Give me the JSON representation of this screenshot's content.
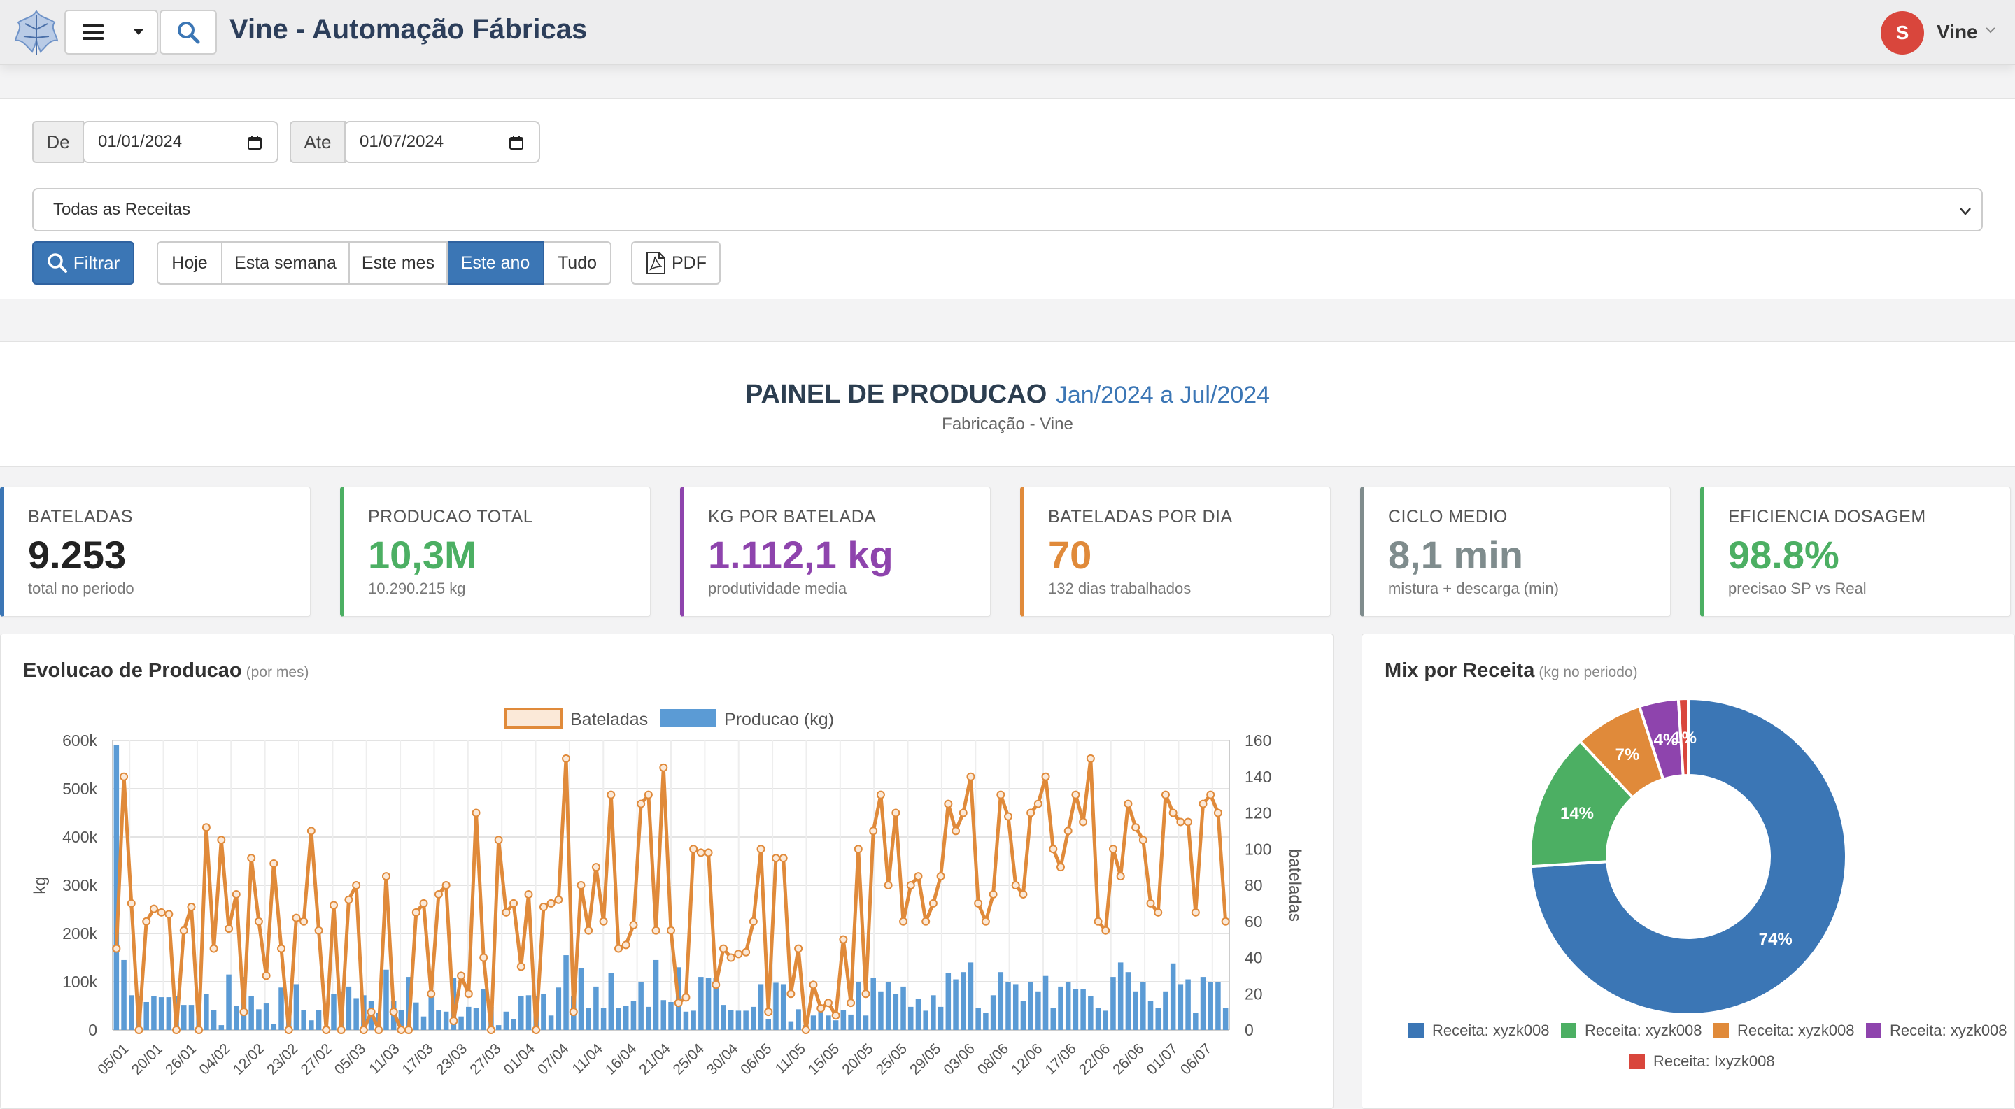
{
  "header": {
    "title": "Vine - Automação Fábricas",
    "user_initial": "S",
    "user_name": "Vine"
  },
  "filters": {
    "from_label": "De",
    "from_value": "01/01/2024",
    "to_label": "Ate",
    "to_value": "01/07/2024",
    "recipe_select": "Todas as Receitas",
    "filter_button": "Filtrar",
    "periods": [
      "Hoje",
      "Esta semana",
      "Este mes",
      "Este ano",
      "Tudo"
    ],
    "active_period": "Este ano",
    "pdf_button": "PDF"
  },
  "dashboard": {
    "title": "PAINEL DE PRODUCAO",
    "period": "Jan/2024 a Jul/2024",
    "subtitle": "Fabricação - Vine"
  },
  "kpis": [
    {
      "label": "BATELADAS",
      "value": "9.253",
      "sub": "total no periodo",
      "color": "#3b76b5",
      "value_color": "#222222"
    },
    {
      "label": "PRODUCAO TOTAL",
      "value": "10,3M",
      "sub": "10.290.215 kg",
      "color": "#4caf63",
      "value_color": "#4caf63"
    },
    {
      "label": "KG POR BATELADA",
      "value": "1.112,1 kg",
      "sub": "produtividade media",
      "color": "#8e44ad",
      "value_color": "#8e44ad"
    },
    {
      "label": "BATELADAS POR DIA",
      "value": "70",
      "sub": "132 dias trabalhados",
      "color": "#e08a3a",
      "value_color": "#e08a3a"
    },
    {
      "label": "CICLO MEDIO",
      "value": "8,1 min",
      "sub": "mistura + descarga (min)",
      "color": "#7f8c8d",
      "value_color": "#7f8c8d"
    },
    {
      "label": "EFICIENCIA DOSAGEM",
      "value": "98.8%",
      "sub": "precisao SP vs Real",
      "color": "#4caf63",
      "value_color": "#4caf63"
    }
  ],
  "production_panel": {
    "title": "Evolucao de Producao",
    "subtitle": "(por mes)"
  },
  "mix_panel": {
    "title": "Mix por Receita",
    "subtitle": "(kg no periodo)"
  },
  "chart_data": [
    {
      "type": "bar+line",
      "title": "",
      "ylabel": "kg",
      "y2label": "bateladas",
      "ylim": [
        0,
        600000
      ],
      "y2lim": [
        0,
        160
      ],
      "y_ticks": [
        "0",
        "100k",
        "200k",
        "300k",
        "400k",
        "500k",
        "600k"
      ],
      "y2_ticks": [
        "0",
        "20",
        "40",
        "60",
        "80",
        "100",
        "120",
        "140",
        "160"
      ],
      "x_tick_labels": [
        "05/01",
        "20/01",
        "26/01",
        "04/02",
        "12/02",
        "23/02",
        "27/02",
        "05/03",
        "11/03",
        "17/03",
        "23/03",
        "27/03",
        "01/04",
        "07/04",
        "11/04",
        "16/04",
        "21/04",
        "25/04",
        "30/04",
        "06/05",
        "11/05",
        "15/05",
        "20/05",
        "25/05",
        "29/05",
        "03/06",
        "08/06",
        "12/06",
        "17/06",
        "22/06",
        "26/06",
        "01/07",
        "06/07"
      ],
      "legend": "top",
      "grid": true,
      "series": [
        {
          "name": "Bateladas",
          "kind": "line",
          "axis": "right",
          "color": "#e08a3a",
          "values": [
            45,
            140,
            70,
            0,
            60,
            67,
            65,
            64,
            0,
            55,
            68,
            0,
            112,
            45,
            105,
            56,
            75,
            10,
            95,
            60,
            30,
            92,
            45,
            0,
            62,
            60,
            110,
            55,
            0,
            69,
            0,
            72,
            80,
            0,
            10,
            0,
            85,
            10,
            0,
            0,
            65,
            70,
            20,
            75,
            80,
            5,
            30,
            20,
            120,
            40,
            0,
            105,
            65,
            70,
            35,
            75,
            0,
            68,
            70,
            72,
            150,
            10,
            80,
            55,
            90,
            60,
            130,
            45,
            47,
            58,
            125,
            130,
            55,
            145,
            55,
            15,
            18,
            100,
            98,
            98,
            25,
            45,
            40,
            42,
            43,
            60,
            100,
            10,
            95,
            95,
            20,
            45,
            0,
            25,
            12,
            15,
            8,
            50,
            15,
            100,
            20,
            110,
            130,
            80,
            120,
            60,
            80,
            85,
            60,
            70,
            85,
            125,
            110,
            120,
            140,
            70,
            60,
            75,
            130,
            118,
            80,
            75,
            120,
            125,
            140,
            100,
            90,
            110,
            130,
            115,
            150,
            60,
            55,
            100,
            85,
            125,
            112,
            105,
            70,
            65,
            130,
            120,
            115,
            115,
            65,
            125,
            130,
            120,
            60
          ]
        },
        {
          "name": "Producao (kg)",
          "kind": "bar",
          "axis": "left",
          "color": "#5b9bd5",
          "values": [
            590000,
            145000,
            72000,
            70000,
            58000,
            70000,
            68000,
            68000,
            70000,
            52000,
            52000,
            42000,
            75000,
            42000,
            10000,
            115000,
            50000,
            110000,
            70000,
            43000,
            55000,
            12000,
            88000,
            40000,
            95000,
            42000,
            20000,
            42000,
            0,
            75000,
            80000,
            90000,
            66000,
            72000,
            60000,
            35000,
            125000,
            60000,
            42000,
            110000,
            57000,
            28000,
            68000,
            42000,
            38000,
            108000,
            28000,
            48000,
            45000,
            85000,
            48000,
            10000,
            38000,
            22000,
            70000,
            72000,
            70000,
            75000,
            30000,
            88000,
            155000,
            70000,
            128000,
            45000,
            90000,
            45000,
            118000,
            45000,
            50000,
            60000,
            100000,
            48000,
            145000,
            62000,
            58000,
            130000,
            38000,
            40000,
            110000,
            108000,
            108000,
            52000,
            42000,
            40000,
            40000,
            48000,
            95000,
            22000,
            98000,
            95000,
            18000,
            43000,
            10000,
            30000,
            50000,
            30000,
            20000,
            42000,
            32000,
            100000,
            30000,
            108000,
            80000,
            100000,
            75000,
            90000,
            48000,
            65000,
            40000,
            72000,
            48000,
            118000,
            105000,
            120000,
            140000,
            45000,
            35000,
            72000,
            120000,
            100000,
            95000,
            60000,
            100000,
            80000,
            112000,
            45000,
            90000,
            100000,
            85000,
            85000,
            70000,
            45000,
            40000,
            110000,
            140000,
            120000,
            80000,
            100000,
            60000,
            45000,
            80000,
            138000,
            95000,
            105000,
            35000,
            110000,
            100000,
            100000,
            45000
          ]
        }
      ]
    },
    {
      "type": "pie",
      "title": "",
      "donut": true,
      "legend": "bottom",
      "series": [
        {
          "name": "Receita: xyzk008",
          "value": 74,
          "label": "74%",
          "color": "#3b76b5"
        },
        {
          "name": "Receita: xyzk008",
          "value": 14,
          "label": "14%",
          "color": "#4caf63"
        },
        {
          "name": "Receita: xyzk008",
          "value": 7,
          "label": "7%",
          "color": "#e08a3a"
        },
        {
          "name": "Receita:  xyzk008",
          "value": 4,
          "label": "4%",
          "color": "#8e44ad"
        },
        {
          "name": "Receita: Ixyzk008",
          "value": 1,
          "label": "1%",
          "color": "#d9463c"
        }
      ]
    }
  ]
}
